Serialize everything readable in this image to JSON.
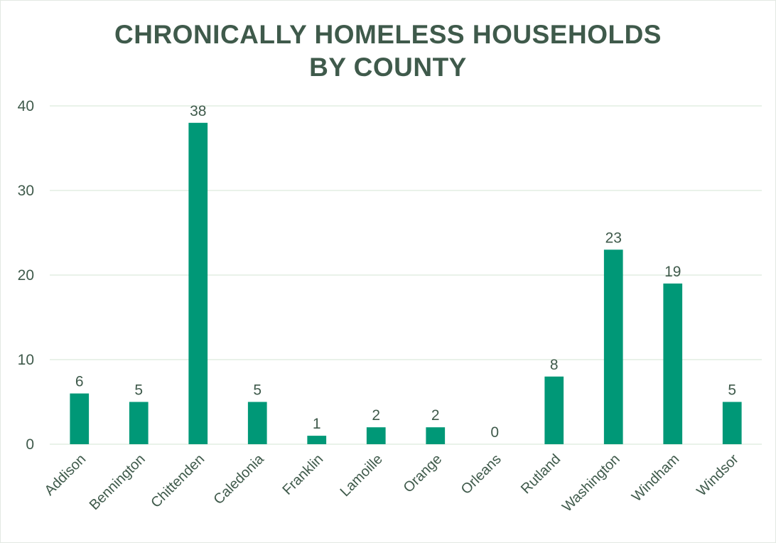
{
  "chart_data": {
    "type": "bar",
    "title": "CHRONICALLY  HOMELESS HOUSEHOLDS\nBY COUNTY",
    "categories": [
      "Addison",
      "Bennington",
      "Chittenden",
      "Caledonia",
      "Franklin",
      "Lamoille",
      "Orange",
      "Orleans",
      "Rutland",
      "Washington",
      "Windham",
      "Windsor"
    ],
    "values": [
      6,
      5,
      38,
      5,
      1,
      2,
      2,
      0,
      8,
      23,
      19,
      5
    ],
    "yticks": [
      0,
      10,
      20,
      30,
      40
    ],
    "ylim": [
      0,
      40
    ],
    "grid": true,
    "legend": "none",
    "xlabel": "",
    "ylabel": "",
    "bar_color": "#009877",
    "grid_color": "#e2eee2",
    "text_color": "#3f5a4b"
  }
}
